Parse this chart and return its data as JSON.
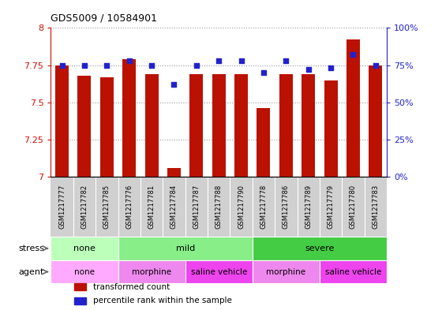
{
  "title": "GDS5009 / 10584901",
  "samples": [
    "GSM1217777",
    "GSM1217782",
    "GSM1217785",
    "GSM1217776",
    "GSM1217781",
    "GSM1217784",
    "GSM1217787",
    "GSM1217788",
    "GSM1217790",
    "GSM1217778",
    "GSM1217786",
    "GSM1217789",
    "GSM1217779",
    "GSM1217780",
    "GSM1217783"
  ],
  "transformed_counts": [
    7.75,
    7.68,
    7.67,
    7.79,
    7.69,
    7.06,
    7.69,
    7.69,
    7.69,
    7.46,
    7.69,
    7.69,
    7.65,
    7.92,
    7.75
  ],
  "percentile_ranks": [
    75,
    75,
    75,
    78,
    75,
    62,
    75,
    78,
    78,
    70,
    78,
    72,
    73,
    82,
    75
  ],
  "ylim_left": [
    7.0,
    8.0
  ],
  "ylim_right": [
    0,
    100
  ],
  "yticks_left": [
    7.0,
    7.25,
    7.5,
    7.75,
    8.0
  ],
  "ytick_labels_left": [
    "7",
    "7.25",
    "7.5",
    "7.75",
    "8"
  ],
  "yticks_right": [
    0,
    25,
    50,
    75,
    100
  ],
  "ytick_labels_right": [
    "0%",
    "25%",
    "50%",
    "75%",
    "100%"
  ],
  "bar_color": "#bb1100",
  "dot_color": "#2222cc",
  "grid_color": "#888888",
  "xticklabel_bg": "#d0d0d0",
  "stress_groups": [
    {
      "label": "none",
      "start": 0,
      "end": 3,
      "color": "#bbffbb"
    },
    {
      "label": "mild",
      "start": 3,
      "end": 9,
      "color": "#88ee88"
    },
    {
      "label": "severe",
      "start": 9,
      "end": 15,
      "color": "#44cc44"
    }
  ],
  "agent_groups": [
    {
      "label": "none",
      "start": 0,
      "end": 3,
      "color": "#ffaaff"
    },
    {
      "label": "morphine",
      "start": 3,
      "end": 6,
      "color": "#ee88ee"
    },
    {
      "label": "saline vehicle",
      "start": 6,
      "end": 9,
      "color": "#ee44ee"
    },
    {
      "label": "morphine",
      "start": 9,
      "end": 12,
      "color": "#ee88ee"
    },
    {
      "label": "saline vehicle",
      "start": 12,
      "end": 15,
      "color": "#ee44ee"
    }
  ],
  "legend_items": [
    {
      "label": "transformed count",
      "color": "#bb1100"
    },
    {
      "label": "percentile rank within the sample",
      "color": "#2222cc"
    }
  ]
}
